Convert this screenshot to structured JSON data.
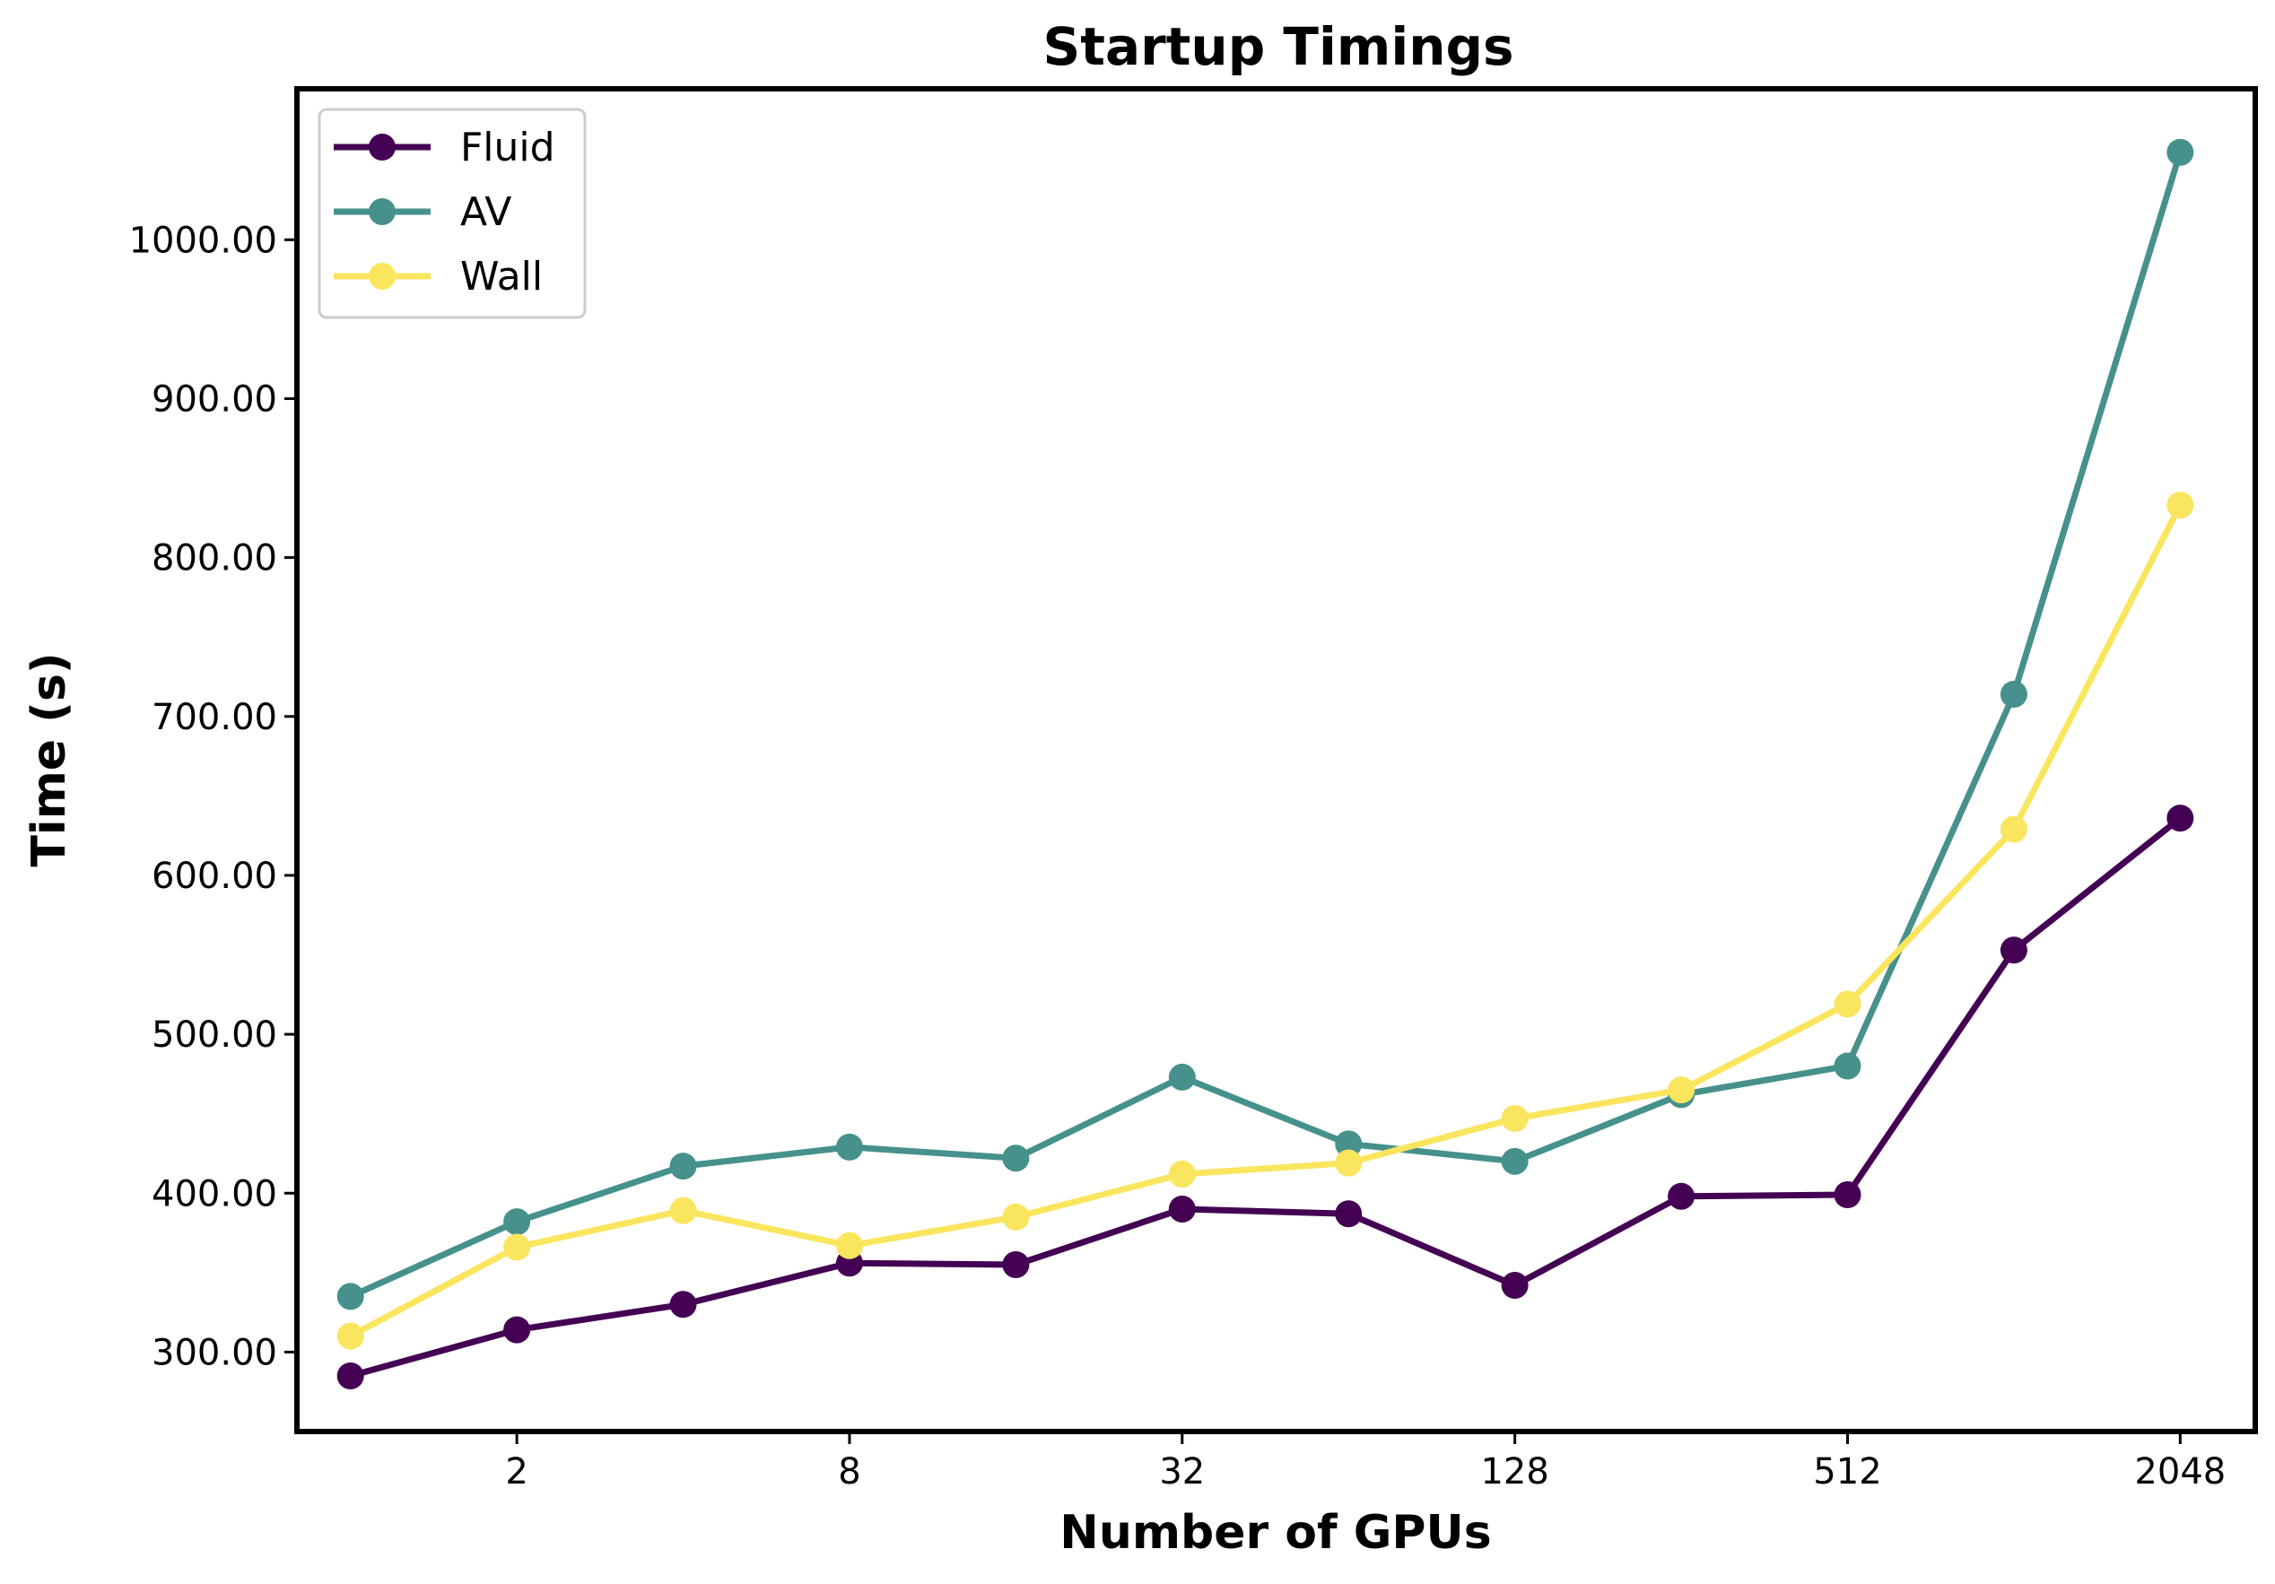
{
  "chart_data": {
    "type": "line",
    "title": "Startup Timings",
    "xlabel": "Number of GPUs",
    "ylabel": "Time (s)",
    "x_scale": "log2",
    "x": [
      1,
      2,
      4,
      8,
      16,
      32,
      64,
      128,
      256,
      512,
      1024,
      2048
    ],
    "x_ticks": [
      2,
      8,
      32,
      128,
      512,
      2048
    ],
    "x_tick_labels": [
      "2",
      "8",
      "32",
      "128",
      "512",
      "2048"
    ],
    "xlim": [
      0.8,
      2800
    ],
    "y_ticks": [
      300,
      400,
      500,
      600,
      700,
      800,
      900,
      1000
    ],
    "y_tick_labels": [
      "300.00",
      "400.00",
      "500.00",
      "600.00",
      "700.00",
      "800.00",
      "900.00",
      "1000.00"
    ],
    "ylim": [
      250,
      1095
    ],
    "grid": false,
    "legend_position": "top-left",
    "series": [
      {
        "name": "Fluid",
        "color": "#440154",
        "values": [
          285,
          314,
          330,
          356,
          355,
          390,
          387,
          342,
          398,
          399,
          553,
          636
        ]
      },
      {
        "name": "AV",
        "color": "#46918B",
        "values": [
          335,
          382,
          417,
          429,
          422,
          473,
          431,
          420,
          462,
          480,
          714,
          1055
        ]
      },
      {
        "name": "Wall",
        "color": "#FAE55E",
        "values": [
          310,
          366,
          389,
          367,
          385,
          412,
          419,
          447,
          465,
          519,
          629,
          833
        ]
      }
    ]
  }
}
